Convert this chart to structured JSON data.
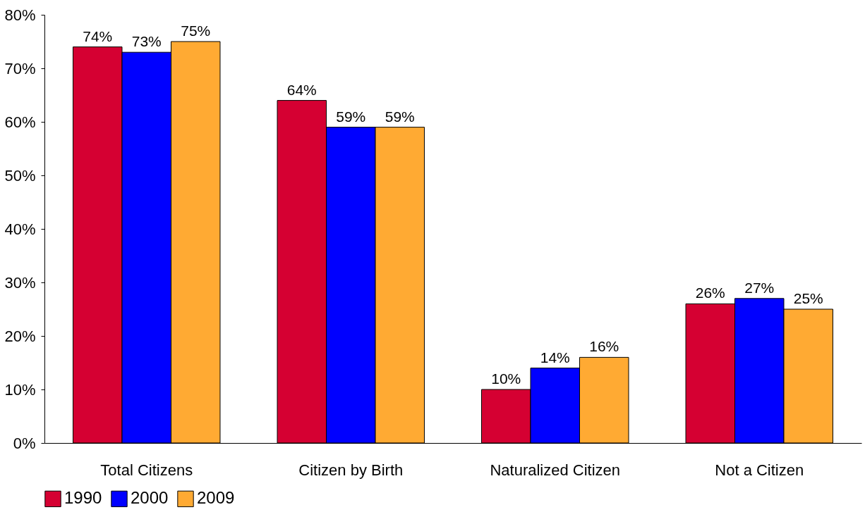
{
  "chart_data": {
    "type": "bar",
    "categories": [
      "Total Citizens",
      "Citizen by Birth",
      "Naturalized Citizen",
      "Not a Citizen"
    ],
    "series": [
      {
        "name": "1990",
        "color": "#d50032",
        "values": [
          74,
          64,
          10,
          26
        ],
        "value_labels": [
          "74%",
          "64%",
          "10%",
          "26%"
        ]
      },
      {
        "name": "2000",
        "color": "#0000ff",
        "values": [
          73,
          59,
          14,
          27
        ],
        "value_labels": [
          "73%",
          "59%",
          "14%",
          "27%"
        ]
      },
      {
        "name": "2009",
        "color": "#ffaa33",
        "values": [
          75,
          59,
          16,
          25
        ],
        "value_labels": [
          "75%",
          "59%",
          "16%",
          "25%"
        ]
      }
    ],
    "ylim": [
      0,
      80
    ],
    "yticks": [
      {
        "value": 0,
        "label": "0%"
      },
      {
        "value": 10,
        "label": "10%"
      },
      {
        "value": 20,
        "label": "20%"
      },
      {
        "value": 30,
        "label": "30%"
      },
      {
        "value": 40,
        "label": "40%"
      },
      {
        "value": 50,
        "label": "50%"
      },
      {
        "value": 60,
        "label": "60%"
      },
      {
        "value": 70,
        "label": "70%"
      },
      {
        "value": 80,
        "label": "80%"
      }
    ],
    "grid": false,
    "legend": "bottom"
  }
}
